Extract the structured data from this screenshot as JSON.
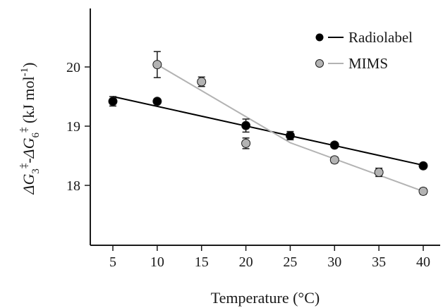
{
  "chart_data": {
    "type": "scatter",
    "xlabel": "Temperature (°C)",
    "ylabel_parts": {
      "delta1": "ΔG",
      "sub1": "3",
      "dagger1": "‡",
      "minus": "-",
      "delta2": "ΔG",
      "sub2": "6",
      "dagger2": "‡",
      "units": " (kJ mol",
      "exp": "-1",
      "close": ")"
    },
    "xlim": [
      2,
      42
    ],
    "ylim": [
      17,
      21
    ],
    "xticks": [
      5,
      10,
      15,
      20,
      25,
      30,
      35,
      40
    ],
    "yticks": [
      18,
      19,
      20
    ],
    "legend_position": "top-right",
    "series": [
      {
        "name": "Radiolabel",
        "marker_color": "#000000",
        "line_color": "#000000",
        "line_type": "linear-fit",
        "x": [
          5,
          10,
          20,
          25,
          30,
          40
        ],
        "y": [
          19.42,
          19.42,
          19.01,
          18.84,
          18.68,
          18.33
        ],
        "err": [
          0.08,
          0.04,
          0.11,
          0.07,
          0.04,
          0.04
        ],
        "fit": {
          "x": [
            5,
            40
          ],
          "y": [
            19.5,
            18.34
          ]
        }
      },
      {
        "name": "MIMS",
        "marker_color": "#b3b3b3",
        "line_color": "#b3b3b3",
        "line_type": "piecewise-fit",
        "x": [
          10,
          15,
          20,
          30,
          35,
          40
        ],
        "y": [
          20.04,
          19.75,
          18.71,
          18.43,
          18.22,
          17.9
        ],
        "err": [
          0.22,
          0.08,
          0.09,
          0.05,
          0.07,
          0.05
        ],
        "fit": {
          "x": [
            10,
            25,
            40
          ],
          "y": [
            20.04,
            18.72,
            17.9
          ]
        }
      }
    ]
  }
}
